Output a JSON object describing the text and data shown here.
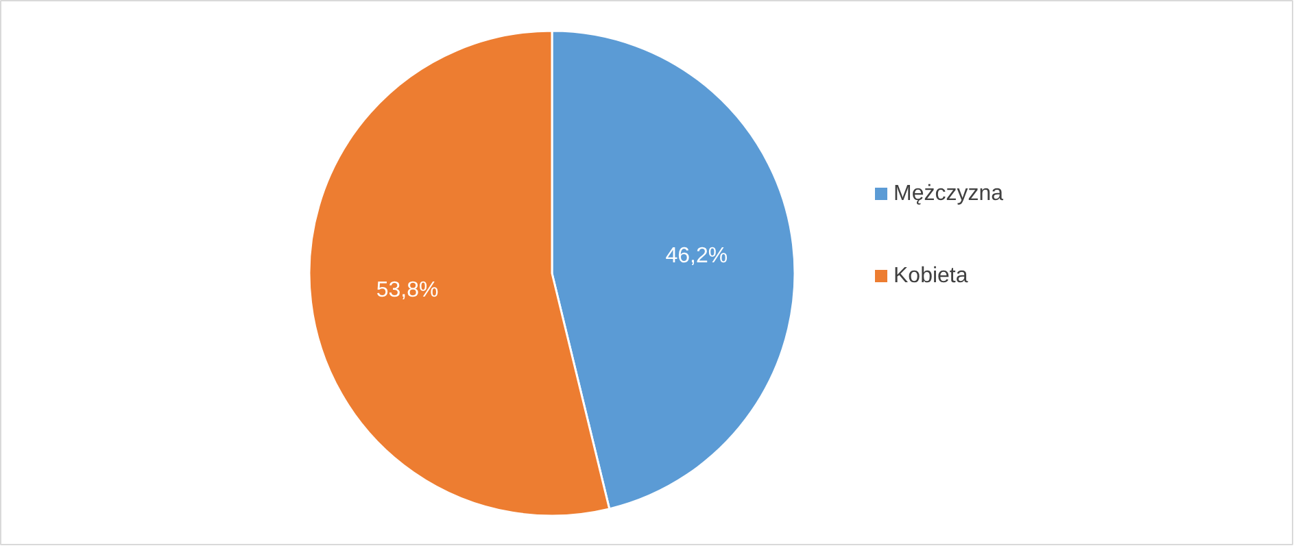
{
  "chart_data": {
    "type": "pie",
    "categories": [
      "Mężczyzna",
      "Kobieta"
    ],
    "values": [
      46.2,
      53.8
    ],
    "colors": [
      "#5b9bd5",
      "#ed7d31"
    ],
    "value_labels": [
      "46,2%",
      "53,8%"
    ],
    "legend": "right"
  }
}
